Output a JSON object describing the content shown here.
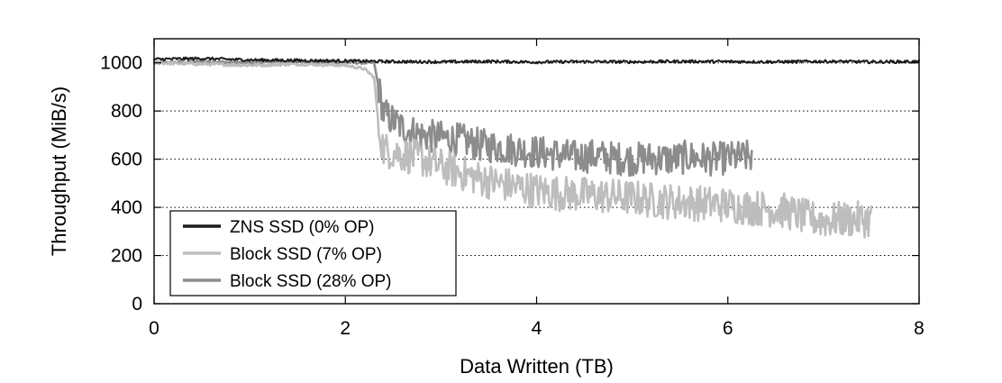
{
  "chart_data": {
    "type": "line",
    "xlabel": "Data Written (TB)",
    "ylabel": "Throughput (MiB/s)",
    "xlim": [
      0,
      8
    ],
    "ylim": [
      0,
      1100
    ],
    "xticks": [
      0,
      2,
      4,
      6,
      8
    ],
    "yticks": [
      0,
      200,
      400,
      600,
      800,
      1000
    ],
    "grid": "horizontal-dotted",
    "legend": {
      "position": "bottom-left",
      "boxed": true
    },
    "series": [
      {
        "name": "ZNS SSD (0% OP)",
        "color": "#1a1a1a",
        "x": [
          0,
          0.5,
          1,
          1.5,
          2,
          2.5,
          3,
          3.5,
          4,
          4.5,
          5,
          5.5,
          6,
          6.5,
          7,
          7.5,
          8
        ],
        "y": [
          1015,
          1018,
          1012,
          1010,
          1008,
          1005,
          1004,
          1006,
          1003,
          1005,
          1004,
          1006,
          1005,
          1004,
          1006,
          1004,
          1005
        ]
      },
      {
        "name": "Block SSD (7% OP)",
        "color": "#bdbdbd",
        "x": [
          0,
          0.5,
          1,
          1.5,
          2,
          2.2,
          2.3,
          2.35,
          2.4,
          2.6,
          2.8,
          3.0,
          3.2,
          3.4,
          3.6,
          3.8,
          4.0,
          4.2,
          4.4,
          4.6,
          4.8,
          5.0,
          5.2,
          5.4,
          5.6,
          5.8,
          6.0,
          6.2,
          6.4,
          6.6,
          6.8,
          7.0,
          7.2,
          7.5
        ],
        "y": [
          1000,
          995,
          990,
          995,
          990,
          975,
          940,
          730,
          640,
          620,
          600,
          570,
          545,
          520,
          500,
          485,
          470,
          460,
          455,
          450,
          445,
          440,
          430,
          425,
          420,
          415,
          410,
          400,
          395,
          385,
          360,
          345,
          350,
          350
        ]
      },
      {
        "name": "Block SSD (28% OP)",
        "color": "#8c8c8c",
        "x": [
          0,
          0.5,
          1,
          1.5,
          2,
          2.3,
          2.4,
          2.6,
          2.8,
          3.0,
          3.2,
          3.4,
          3.6,
          3.8,
          4.0,
          4.2,
          4.4,
          4.6,
          4.8,
          5.0,
          5.2,
          5.4,
          5.6,
          5.8,
          6.0,
          6.2,
          6.25
        ],
        "y": [
          1000,
          1005,
          1000,
          1005,
          1002,
          1000,
          790,
          730,
          700,
          690,
          680,
          660,
          650,
          640,
          630,
          620,
          610,
          615,
          605,
          600,
          605,
          600,
          610,
          600,
          605,
          610,
          610
        ]
      }
    ]
  }
}
